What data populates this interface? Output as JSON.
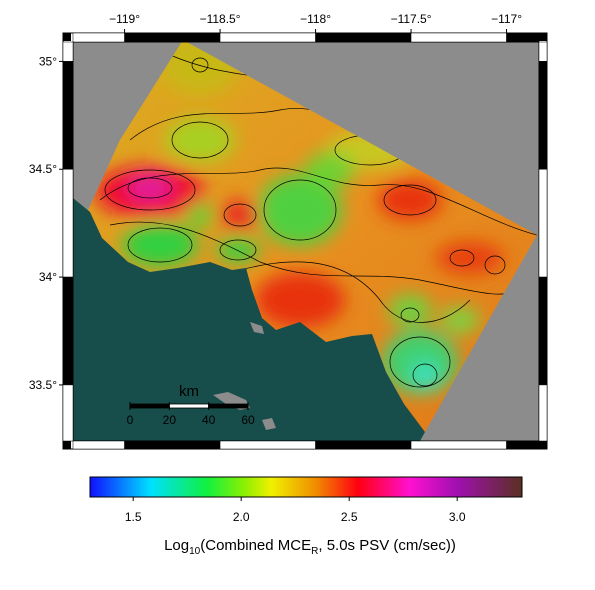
{
  "map": {
    "xlim": [
      -119.27,
      -116.83
    ],
    "ylim": [
      33.24,
      35.09
    ],
    "xticks": [
      {
        "value": -119,
        "label": "−119°"
      },
      {
        "value": -118.5,
        "label": "−118.5°"
      },
      {
        "value": -118,
        "label": "−118°"
      },
      {
        "value": -117.5,
        "label": "−117.5°"
      },
      {
        "value": -117,
        "label": "−117°"
      }
    ],
    "yticks": [
      {
        "value": 35,
        "label": "35°"
      },
      {
        "value": 34.5,
        "label": "34.5°"
      },
      {
        "value": 34,
        "label": "34°"
      },
      {
        "value": 33.5,
        "label": "33.5°"
      }
    ],
    "scale_bar": {
      "unit": "km",
      "ticks": [
        0,
        20,
        40,
        60
      ]
    }
  },
  "colorbar": {
    "clim": [
      1.3,
      3.3
    ],
    "ticks": [
      1.5,
      {
        "value": 2,
        "label": "2.0"
      },
      2.5,
      {
        "value": 3,
        "label": "3.0"
      }
    ],
    "title": {
      "a": "Log",
      "b": "10",
      "c": "(Combined MCE",
      "d": "R",
      "e": ", 5.0s PSV (cm/sec))"
    }
  }
}
